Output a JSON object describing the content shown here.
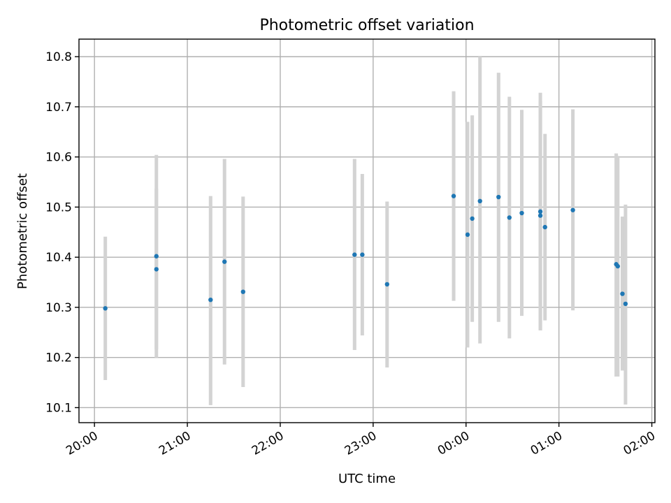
{
  "chart_data": {
    "type": "scatter",
    "title": "Photometric offset variation",
    "xlabel": "UTC time",
    "ylabel": "Photometric offset",
    "x_axis_type": "time",
    "x_range": [
      "19:50",
      "02:02"
    ],
    "ylim": [
      10.07,
      10.835
    ],
    "x_tick_labels": [
      "20:00",
      "21:00",
      "22:00",
      "23:00",
      "00:00",
      "01:00",
      "02:00"
    ],
    "y_tick_labels": [
      "10.1",
      "10.2",
      "10.3",
      "10.4",
      "10.5",
      "10.6",
      "10.7",
      "10.8"
    ],
    "x_tick_label_rotation": 30,
    "grid": true,
    "marker_color": "#1f77b4",
    "errorbar_color": "#d3d3d3",
    "points": [
      {
        "x": "20:07",
        "y": 10.298,
        "ylow": 10.155,
        "yhigh": 10.441
      },
      {
        "x": "20:40",
        "y": 10.376,
        "ylow": 10.216,
        "yhigh": 10.537
      },
      {
        "x": "20:40",
        "y": 10.402,
        "ylow": 10.2,
        "yhigh": 10.604
      },
      {
        "x": "21:15",
        "y": 10.315,
        "ylow": 10.105,
        "yhigh": 10.522
      },
      {
        "x": "21:24",
        "y": 10.391,
        "ylow": 10.186,
        "yhigh": 10.596
      },
      {
        "x": "21:36",
        "y": 10.331,
        "ylow": 10.141,
        "yhigh": 10.521
      },
      {
        "x": "22:48",
        "y": 10.405,
        "ylow": 10.215,
        "yhigh": 10.596
      },
      {
        "x": "22:53",
        "y": 10.405,
        "ylow": 10.244,
        "yhigh": 10.566
      },
      {
        "x": "23:09",
        "y": 10.346,
        "ylow": 10.18,
        "yhigh": 10.511
      },
      {
        "x": "23:52",
        "y": 10.522,
        "ylow": 10.313,
        "yhigh": 10.731
      },
      {
        "x": "00:01",
        "y": 10.445,
        "ylow": 10.22,
        "yhigh": 10.67
      },
      {
        "x": "00:04",
        "y": 10.477,
        "ylow": 10.271,
        "yhigh": 10.683
      },
      {
        "x": "00:09",
        "y": 10.512,
        "ylow": 10.228,
        "yhigh": 10.8
      },
      {
        "x": "00:21",
        "y": 10.52,
        "ylow": 10.271,
        "yhigh": 10.768
      },
      {
        "x": "00:28",
        "y": 10.479,
        "ylow": 10.238,
        "yhigh": 10.72
      },
      {
        "x": "00:36",
        "y": 10.488,
        "ylow": 10.283,
        "yhigh": 10.694
      },
      {
        "x": "00:48",
        "y": 10.483,
        "ylow": 10.254,
        "yhigh": 10.712
      },
      {
        "x": "00:48",
        "y": 10.491,
        "ylow": 10.254,
        "yhigh": 10.728
      },
      {
        "x": "00:51",
        "y": 10.46,
        "ylow": 10.274,
        "yhigh": 10.646
      },
      {
        "x": "01:09",
        "y": 10.494,
        "ylow": 10.294,
        "yhigh": 10.695
      },
      {
        "x": "01:37",
        "y": 10.386,
        "ylow": 10.162,
        "yhigh": 10.607
      },
      {
        "x": "01:38",
        "y": 10.382,
        "ylow": 10.162,
        "yhigh": 10.602
      },
      {
        "x": "01:41",
        "y": 10.327,
        "ylow": 10.174,
        "yhigh": 10.481
      },
      {
        "x": "01:43",
        "y": 10.307,
        "ylow": 10.106,
        "yhigh": 10.505
      }
    ]
  }
}
